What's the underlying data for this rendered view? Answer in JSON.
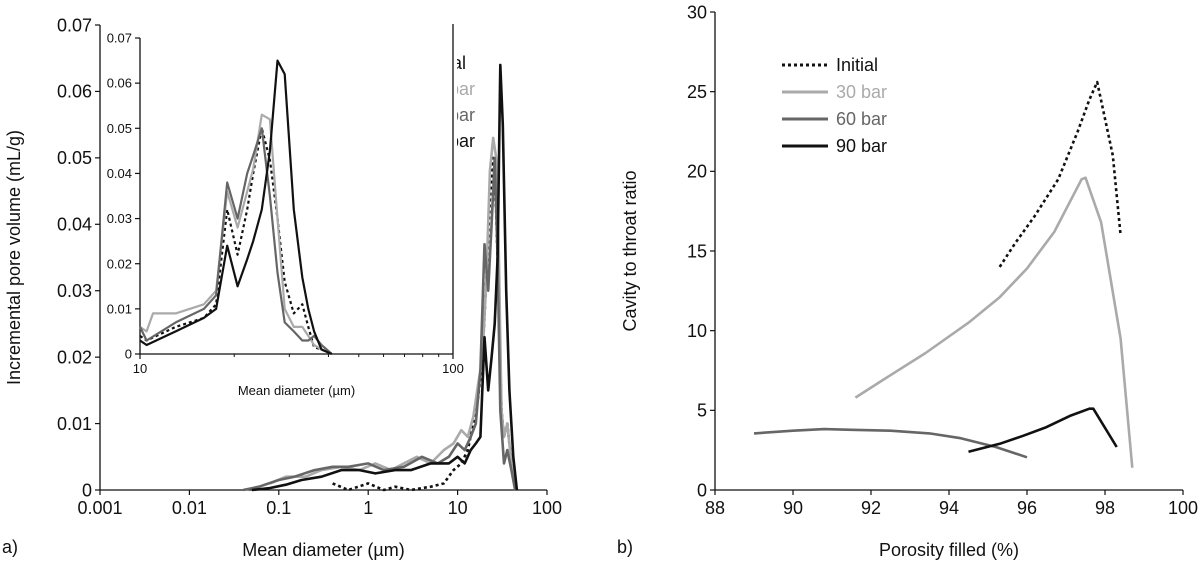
{
  "colors": {
    "initial": "#111111",
    "bar30": "#aaaaaa",
    "bar60": "#666666",
    "bar90": "#111111"
  },
  "panel_labels": {
    "a": "a)",
    "b": "b)"
  },
  "chart_data": [
    {
      "id": "a-main",
      "type": "line",
      "xscale": "log",
      "xlim": [
        0.001,
        100
      ],
      "ylim": [
        0,
        0.07
      ],
      "xticks": [
        "0.001",
        "0.01",
        "0.1",
        "1",
        "10",
        "100"
      ],
      "yticks": [
        "0",
        "0.01",
        "0.02",
        "0.03",
        "0.04",
        "0.05",
        "0.06",
        "0.07"
      ],
      "xlabel": "Mean diameter (µm)",
      "ylabel": "Incremental pore volume (mL/g)",
      "series": [
        {
          "name": "Initial",
          "key": "initial",
          "dash": true,
          "x": [
            0.4,
            0.6,
            1,
            1.5,
            2,
            3,
            5,
            7,
            9,
            11,
            13,
            15,
            17,
            19,
            21,
            23,
            25,
            27,
            29,
            31,
            33,
            36,
            40,
            44
          ],
          "y": [
            0.001,
            0,
            0.001,
            0,
            0.0005,
            0,
            0.0005,
            0.001,
            0.003,
            0.004,
            0.006,
            0.01,
            0.014,
            0.02,
            0.032,
            0.044,
            0.05,
            0.042,
            0.028,
            0.012,
            0.008,
            0.01,
            0.004,
            0
          ]
        },
        {
          "name": "30 bar",
          "key": "bar30",
          "dash": false,
          "x": [
            0.08,
            0.12,
            0.2,
            0.3,
            0.5,
            0.8,
            1.2,
            1.8,
            2.5,
            3.5,
            5,
            7,
            9,
            11,
            13,
            15,
            17,
            19,
            21,
            23,
            25,
            27,
            29,
            31,
            33,
            36,
            40,
            44
          ],
          "y": [
            0.001,
            0.002,
            0.002,
            0.003,
            0.0035,
            0.003,
            0.004,
            0.003,
            0.004,
            0.005,
            0.004,
            0.006,
            0.007,
            0.009,
            0.008,
            0.011,
            0.016,
            0.02,
            0.032,
            0.048,
            0.053,
            0.05,
            0.035,
            0.012,
            0.008,
            0.01,
            0.004,
            0
          ]
        },
        {
          "name": "60 bar",
          "key": "bar60",
          "dash": false,
          "x": [
            0.04,
            0.06,
            0.1,
            0.15,
            0.25,
            0.4,
            0.6,
            1,
            1.5,
            2.5,
            4,
            6,
            8,
            10,
            12,
            14,
            16,
            18,
            20,
            22,
            24,
            26,
            28,
            30,
            33,
            36,
            40,
            44
          ],
          "y": [
            0,
            0.0005,
            0.0015,
            0.002,
            0.003,
            0.0035,
            0.0035,
            0.004,
            0.003,
            0.0035,
            0.005,
            0.004,
            0.005,
            0.007,
            0.006,
            0.008,
            0.01,
            0.018,
            0.037,
            0.03,
            0.04,
            0.05,
            0.035,
            0.012,
            0.004,
            0.006,
            0.003,
            0
          ]
        },
        {
          "name": "90 bar",
          "key": "bar90",
          "dash": false,
          "x": [
            0.05,
            0.08,
            0.12,
            0.18,
            0.3,
            0.5,
            0.8,
            1.2,
            2,
            3,
            5,
            8,
            10,
            12,
            14,
            16,
            18,
            20,
            22,
            24,
            26,
            28,
            30,
            32,
            35,
            38,
            42,
            46
          ],
          "y": [
            0,
            0.0003,
            0.0008,
            0.0015,
            0.002,
            0.003,
            0.003,
            0.0025,
            0.003,
            0.003,
            0.004,
            0.004,
            0.005,
            0.004,
            0.006,
            0.007,
            0.008,
            0.023,
            0.015,
            0.02,
            0.025,
            0.035,
            0.064,
            0.055,
            0.03,
            0.015,
            0.005,
            0
          ]
        }
      ]
    },
    {
      "id": "a-inset",
      "type": "line",
      "xscale": "log",
      "xlim": [
        10,
        100
      ],
      "ylim": [
        0,
        0.07
      ],
      "xticks": [
        "10",
        "100"
      ],
      "yticks": [
        "0",
        "0.01",
        "0.02",
        "0.03",
        "0.04",
        "0.05",
        "0.06",
        "0.07"
      ],
      "xlabel": "Mean diameter (µm)",
      "ylabel": "",
      "series": [
        {
          "name": "Initial",
          "key": "initial",
          "dash": true,
          "x": [
            10,
            10.5,
            13,
            16,
            17.5,
            19,
            20.5,
            22,
            23,
            24.5,
            26,
            27.5,
            29,
            31,
            33,
            34.5,
            36,
            38,
            41
          ],
          "y": [
            0.004,
            0.003,
            0.006,
            0.008,
            0.011,
            0.032,
            0.022,
            0.032,
            0.04,
            0.05,
            0.043,
            0.03,
            0.016,
            0.009,
            0.011,
            0.006,
            0.0015,
            0.001,
            0
          ]
        },
        {
          "name": "30 bar",
          "key": "bar30",
          "dash": false,
          "x": [
            10,
            10.5,
            11,
            13,
            16,
            17.5,
            19,
            20.5,
            22,
            23,
            24.5,
            26,
            27.5,
            29,
            31,
            33,
            34.5,
            36,
            38,
            41
          ],
          "y": [
            0.006,
            0.005,
            0.009,
            0.009,
            0.011,
            0.014,
            0.036,
            0.028,
            0.036,
            0.041,
            0.053,
            0.052,
            0.03,
            0.01,
            0.006,
            0.006,
            0.004,
            0.002,
            0.001,
            0
          ]
        },
        {
          "name": "60 bar",
          "key": "bar60",
          "dash": false,
          "x": [
            10,
            10.5,
            13,
            16,
            17.5,
            19,
            20.5,
            22,
            23,
            24.5,
            26,
            27.5,
            29,
            31,
            33,
            34.5,
            36,
            38,
            41
          ],
          "y": [
            0.006,
            0.003,
            0.007,
            0.01,
            0.013,
            0.038,
            0.03,
            0.04,
            0.044,
            0.05,
            0.035,
            0.018,
            0.007,
            0.005,
            0.003,
            0.003,
            0.004,
            0.002,
            0
          ]
        },
        {
          "name": "90 bar",
          "key": "bar90",
          "dash": false,
          "x": [
            10,
            10.5,
            13,
            16,
            17.5,
            19,
            20.5,
            22,
            23,
            24.5,
            26,
            27.5,
            29,
            31,
            33,
            34.5,
            36,
            38,
            41
          ],
          "y": [
            0.003,
            0.002,
            0.005,
            0.008,
            0.01,
            0.024,
            0.015,
            0.021,
            0.025,
            0.032,
            0.045,
            0.065,
            0.062,
            0.032,
            0.017,
            0.01,
            0.005,
            0.001,
            0
          ]
        }
      ]
    },
    {
      "id": "b",
      "type": "line",
      "xscale": "linear",
      "xlim": [
        88,
        100
      ],
      "ylim": [
        0,
        30
      ],
      "xticks": [
        "88",
        "90",
        "92",
        "94",
        "96",
        "98",
        "100"
      ],
      "yticks": [
        "0",
        "5",
        "10",
        "15",
        "20",
        "25",
        "30"
      ],
      "xlabel": "Porosity filled (%)",
      "ylabel": "Cavity to throat ratio",
      "series": [
        {
          "name": "Initial",
          "key": "initial",
          "dash": true,
          "x": [
            95.3,
            95.7,
            96.2,
            96.8,
            97.3,
            97.6,
            97.8,
            98.2,
            98.4
          ],
          "y": [
            14,
            15.5,
            17.2,
            19.5,
            22.5,
            24.5,
            25.6,
            21,
            16
          ]
        },
        {
          "name": "30 bar",
          "key": "bar30",
          "dash": false,
          "x": [
            91.6,
            92.3,
            93.4,
            94.5,
            95.3,
            96,
            96.7,
            97.4,
            97.5,
            97.9,
            98.4,
            98.7
          ],
          "y": [
            5.8,
            6.9,
            8.6,
            10.5,
            12.1,
            13.9,
            16.2,
            19.5,
            19.6,
            16.8,
            9.5,
            1.4
          ]
        },
        {
          "name": "60 bar",
          "key": "bar60",
          "dash": false,
          "x": [
            89,
            90,
            90.8,
            91.5,
            92.5,
            93.5,
            94.3,
            95.2,
            96
          ],
          "y": [
            3.55,
            3.72,
            3.82,
            3.78,
            3.72,
            3.55,
            3.25,
            2.7,
            2.05
          ]
        },
        {
          "name": "90 bar",
          "key": "bar90",
          "dash": false,
          "x": [
            94.5,
            95.3,
            95.9,
            96.5,
            97.1,
            97.6,
            97.7,
            98.3
          ],
          "y": [
            2.4,
            2.9,
            3.4,
            3.95,
            4.65,
            5.1,
            5.1,
            2.7
          ]
        }
      ]
    }
  ]
}
